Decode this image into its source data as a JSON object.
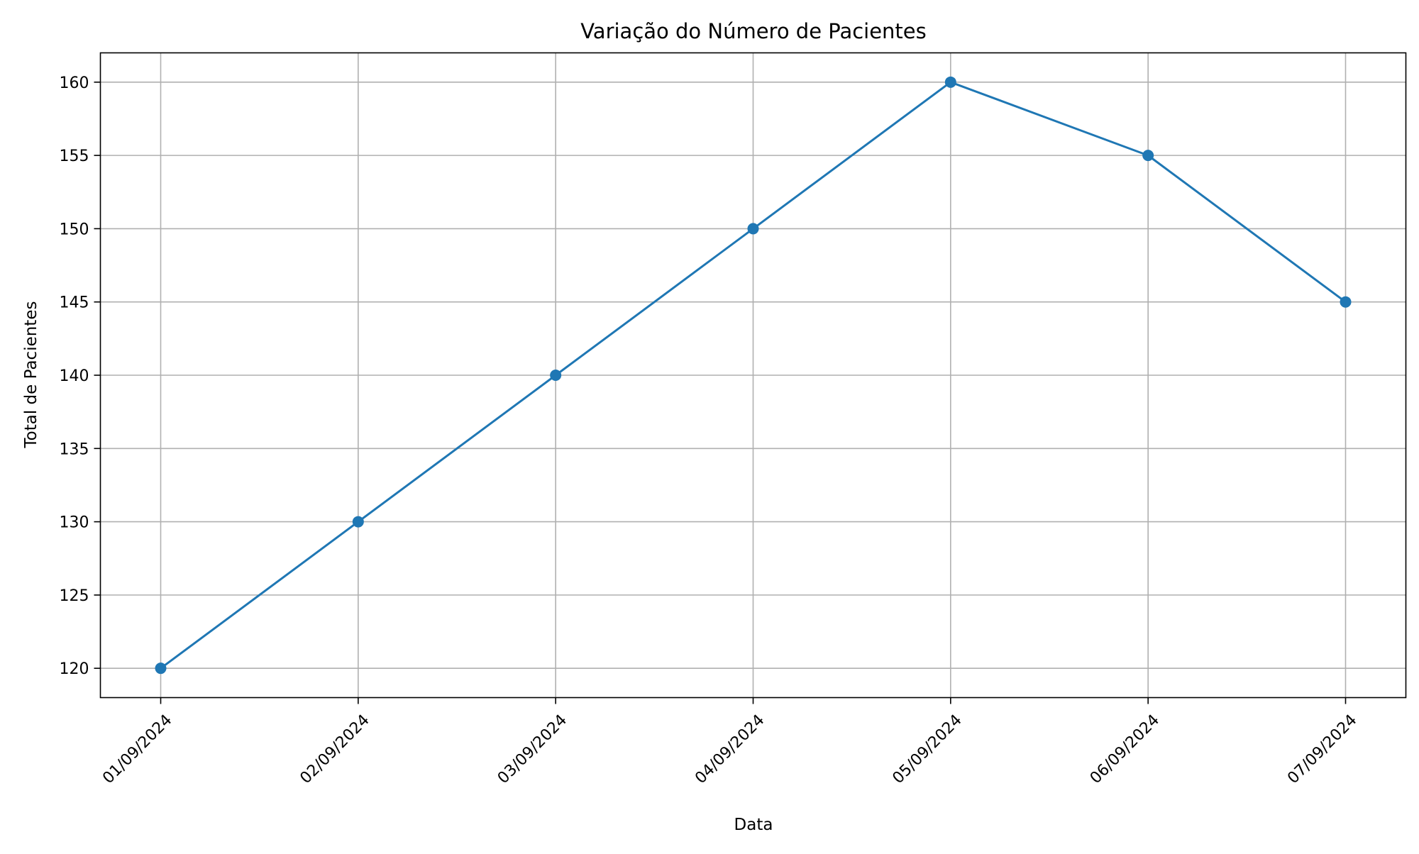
{
  "chart_data": {
    "type": "line",
    "title": "Variação do Número de Pacientes",
    "xlabel": "Data",
    "ylabel": "Total de Pacientes",
    "categories": [
      "01/09/2024",
      "02/09/2024",
      "03/09/2024",
      "04/09/2024",
      "05/09/2024",
      "06/09/2024",
      "07/09/2024"
    ],
    "series": [
      {
        "values": [
          120,
          130,
          140,
          150,
          160,
          155,
          145
        ]
      }
    ],
    "ylim": [
      118,
      162
    ],
    "yticks": [
      "120",
      "125",
      "130",
      "135",
      "140",
      "145",
      "150",
      "155",
      "160"
    ],
    "grid": true,
    "marker": "circle",
    "colors": {
      "line": "#1f77b4",
      "grid": "#b0b0b0",
      "axis": "#000000"
    }
  }
}
